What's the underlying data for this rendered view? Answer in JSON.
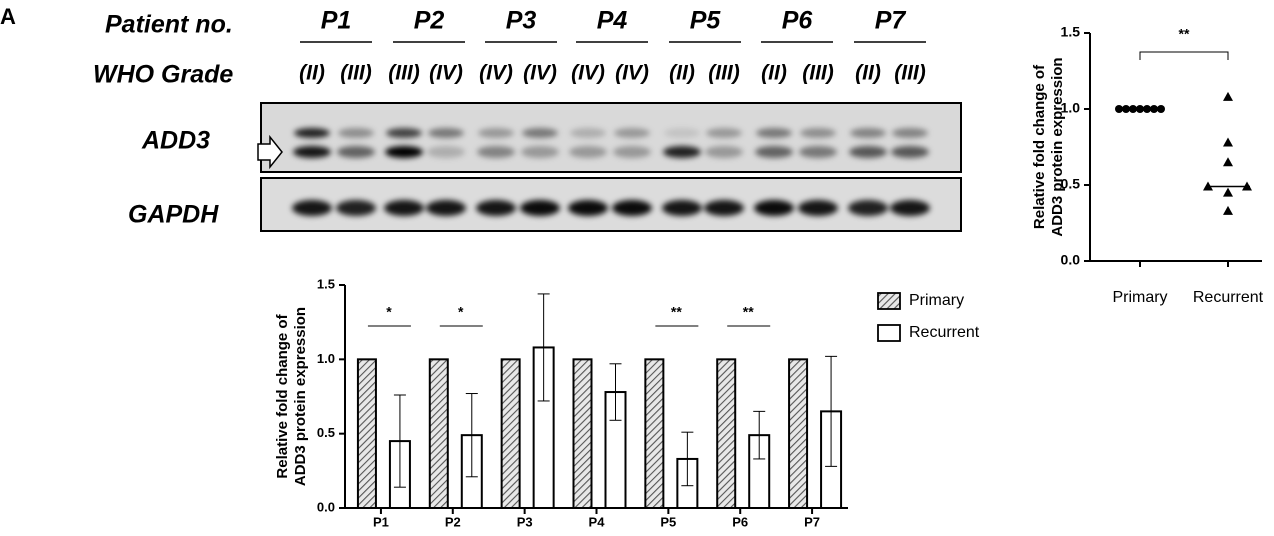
{
  "panel_label": "A",
  "blot": {
    "row_labels": {
      "patient": "Patient no.",
      "grade": "WHO Grade"
    },
    "patients": [
      "P1",
      "P2",
      "P3",
      "P4",
      "P5",
      "P6",
      "P7"
    ],
    "grades": [
      "(II)",
      "(III)",
      "(III)",
      "(IV)",
      "(IV)",
      "(IV)",
      "(IV)",
      "(IV)",
      "(II)",
      "(III)",
      "(II)",
      "(III)",
      "(II)",
      "(III)"
    ],
    "proteins": [
      "ADD3",
      "GAPDH"
    ]
  },
  "chart_data": [
    {
      "type": "bar",
      "ylabel": [
        "Relative fold change of",
        "ADD3 protein expression"
      ],
      "categories": [
        "P1",
        "P2",
        "P3",
        "P4",
        "P5",
        "P6",
        "P7"
      ],
      "series": [
        {
          "name": "Primary",
          "color": "#555555",
          "pattern": "hatch",
          "values": [
            1,
            1,
            1,
            1,
            1,
            1,
            1
          ]
        },
        {
          "name": "Recurrent",
          "color": "#ffffff",
          "values": [
            0.45,
            0.49,
            1.08,
            0.78,
            0.33,
            0.49,
            0.65
          ],
          "errors": [
            0.31,
            0.28,
            0.36,
            0.19,
            0.18,
            0.16,
            0.37
          ]
        }
      ],
      "significance": [
        "*",
        "*",
        null,
        null,
        "**",
        "**",
        null
      ],
      "ylim": [
        0,
        1.5
      ],
      "yticks": [
        {
          "value": 0,
          "label": "0.0"
        },
        0.5,
        {
          "value": 1,
          "label": "1.0"
        },
        1.5
      ],
      "legend": "right"
    },
    {
      "type": "scatter",
      "ylabel": [
        "Relative fold change of",
        "ADD3 protein expression"
      ],
      "categories": [
        "Primary",
        "Recurrent"
      ],
      "series": [
        {
          "marker": "circle",
          "color": "#000000",
          "values": [
            1,
            1,
            1,
            1,
            1,
            1,
            1
          ]
        },
        {
          "marker": "triangle",
          "color": "#000000",
          "values": [
            0.45,
            0.49,
            1.08,
            0.78,
            0.33,
            0.49,
            0.65
          ]
        }
      ],
      "medians": [
        1,
        0.49
      ],
      "significance": "**",
      "ylim": [
        0,
        1.5
      ],
      "yticks": [
        {
          "value": 0,
          "label": "0.0"
        },
        0.5,
        {
          "value": 1,
          "label": "1.0"
        },
        1.5
      ]
    }
  ]
}
